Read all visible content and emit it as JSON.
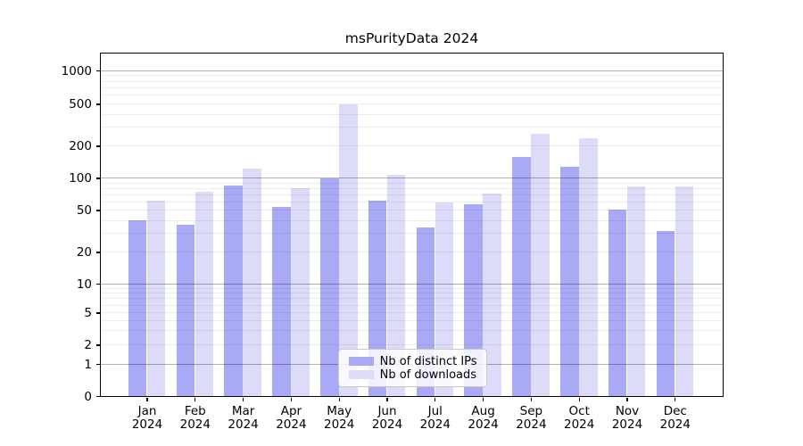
{
  "chart_data": {
    "type": "bar",
    "title": "msPurityData 2024",
    "categories": [
      "Jan",
      "Feb",
      "Mar",
      "Apr",
      "May",
      "Jun",
      "Jul",
      "Aug",
      "Sep",
      "Oct",
      "Nov",
      "Dec"
    ],
    "category_year": "2024",
    "series": [
      {
        "name": "Nb of distinct IPs",
        "color": "#a9a9f6",
        "values": [
          40,
          36,
          85,
          54,
          100,
          61,
          34,
          57,
          158,
          128,
          51,
          32
        ]
      },
      {
        "name": "Nb of downloads",
        "color": "#dcdcf9",
        "values": [
          61,
          74,
          122,
          80,
          500,
          107,
          59,
          72,
          262,
          235,
          83,
          84
        ]
      }
    ],
    "y_axis": {
      "ticks": [
        0,
        1,
        2,
        5,
        10,
        20,
        50,
        100,
        200,
        500,
        1000
      ],
      "scale": "log-like-with-zero-baseline",
      "ylim": [
        0,
        1400
      ]
    },
    "grid": {
      "horizontal_major": true,
      "horizontal_minor": true
    },
    "legend_position": "lower-center"
  }
}
